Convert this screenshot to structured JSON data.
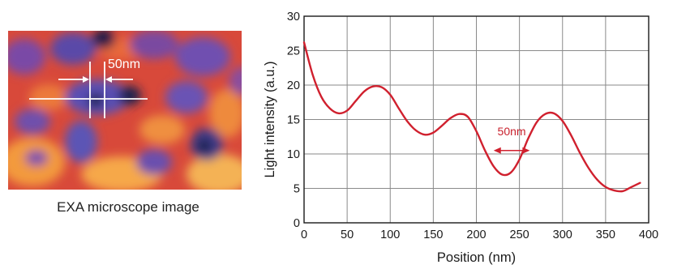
{
  "microscope": {
    "caption": "EXA microscope image",
    "scale_label": "50nm"
  },
  "chart_data": {
    "type": "line",
    "xlabel": "Position (nm)",
    "ylabel": "Light intensity (a.u.)",
    "xlim": [
      0,
      400
    ],
    "ylim": [
      0,
      30
    ],
    "xticks": [
      0,
      50,
      100,
      150,
      200,
      250,
      300,
      350,
      400
    ],
    "yticks": [
      0,
      5,
      10,
      15,
      20,
      25,
      30
    ],
    "grid": true,
    "line_color": "#d0202e",
    "series": [
      {
        "x": [
          0,
          10,
          20,
          30,
          40,
          50,
          60,
          70,
          80,
          90,
          100,
          110,
          120,
          130,
          140,
          150,
          160,
          170,
          180,
          190,
          200,
          210,
          220,
          230,
          240,
          250,
          260,
          270,
          280,
          290,
          300,
          310,
          320,
          330,
          340,
          350,
          360,
          370,
          380,
          390
        ],
        "values": [
          26.2,
          21.5,
          18.3,
          16.6,
          15.9,
          16.3,
          17.7,
          19.1,
          19.8,
          19.7,
          18.6,
          16.6,
          14.7,
          13.4,
          12.8,
          13.1,
          14.1,
          15.2,
          15.8,
          15.4,
          13.3,
          10.5,
          8.2,
          7.0,
          7.3,
          9.2,
          12.2,
          14.6,
          15.8,
          15.9,
          14.8,
          12.7,
          10.2,
          8.0,
          6.3,
          5.2,
          4.7,
          4.6,
          5.2,
          5.8
        ]
      }
    ],
    "annotation": {
      "text": "50nm",
      "x_start": 220,
      "x_end": 262,
      "y": 10.5
    }
  }
}
